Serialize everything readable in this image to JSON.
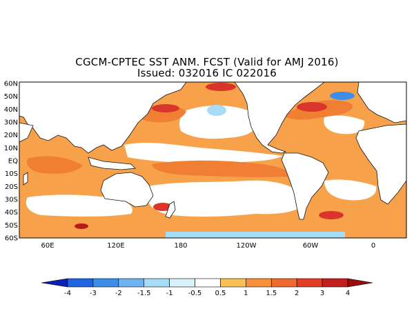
{
  "title": {
    "line1": "CGCM-CPTEC SST ANM. FCST  (Valid for AMJ 2016)",
    "line2": "Issued:  032016 IC 022016"
  },
  "map": {
    "lat_labels": [
      "60N",
      "50N",
      "40N",
      "30N",
      "20N",
      "10N",
      "EQ",
      "10S",
      "20S",
      "30S",
      "40S",
      "50S",
      "60S"
    ],
    "lon_labels": [
      "60E",
      "120E",
      "180",
      "120W",
      "60W",
      "0"
    ]
  },
  "colorbar": {
    "levels": [
      "-4",
      "-3",
      "-2",
      "-1.5",
      "-1",
      "-0.5",
      "0.5",
      "1",
      "1.5",
      "2",
      "3",
      "4"
    ],
    "colors": [
      "#0b1fb0",
      "#1f64e0",
      "#3d8ee8",
      "#6cb3f0",
      "#a6dcf5",
      "#d9f1fb",
      "#ffffff",
      "#fbbf57",
      "#f6913b",
      "#ee6a2e",
      "#e03d26",
      "#c31f1f",
      "#9c0c0c"
    ]
  },
  "colors": {
    "land": "#ffffff",
    "ocean_base": "#f7a24a",
    "warm_strong": "#f07f34",
    "warm_hot": "#d9352a",
    "cool": "#a6dcf5"
  }
}
